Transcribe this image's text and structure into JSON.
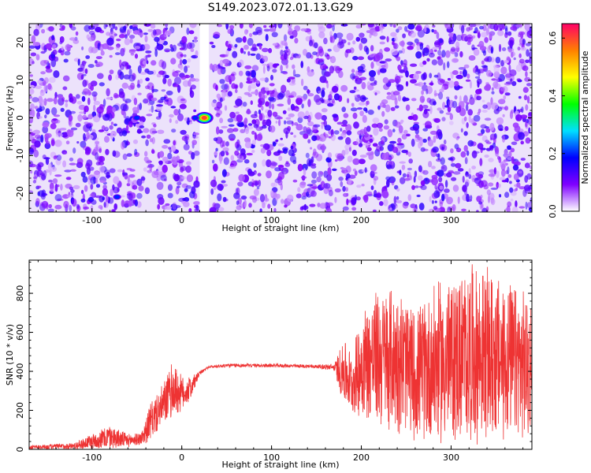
{
  "title": "S149.2023.072.01.13.G29",
  "chart_data": [
    {
      "type": "heatmap",
      "xlabel": "Height of straight line (km)",
      "ylabel": "Frequency (Hz)",
      "xlim": [
        -170,
        390
      ],
      "ylim": [
        -25,
        25
      ],
      "xticks": [
        -100,
        0,
        100,
        200,
        300
      ],
      "yticks": [
        -20,
        -10,
        0,
        10,
        20
      ],
      "colorbar": {
        "label": "Normalized spectral amplitude",
        "range": [
          0,
          0.65
        ],
        "ticks": [
          0.0,
          0.2,
          0.4,
          0.6
        ],
        "colormap": [
          "#ffffff",
          "#7f00ff",
          "#0000ff",
          "#00e0ff",
          "#00ff00",
          "#ffff00",
          "#ff8000",
          "#ff0066"
        ]
      },
      "gap_x": [
        20,
        30
      ],
      "peaks": [
        {
          "x": 25,
          "y": 0,
          "value": 0.62
        },
        {
          "x": -50,
          "y": 0,
          "value": 0.25
        },
        {
          "x": 15,
          "y": 0,
          "value": 0.22
        },
        {
          "x": -72,
          "y": -21,
          "value": 0.28
        },
        {
          "x": 255,
          "y": 0,
          "value": 0.15
        }
      ]
    },
    {
      "type": "line",
      "xlabel": "Height of straight line (km)",
      "ylabel": "SNR (10 * v/v)",
      "xlim": [
        -170,
        390
      ],
      "ylim": [
        0,
        970
      ],
      "xticks": [
        -100,
        0,
        100,
        200,
        300
      ],
      "yticks": [
        0,
        200,
        400,
        600,
        800
      ],
      "color": "#ee3333",
      "envelope": {
        "x": [
          -170,
          -120,
          -80,
          -60,
          -45,
          -35,
          -25,
          -10,
          0,
          10,
          20,
          30,
          50,
          100,
          150,
          170,
          180,
          190,
          200,
          220,
          240,
          260,
          280,
          300,
          320,
          340,
          360,
          390
        ],
        "upper": [
          20,
          35,
          130,
          80,
          90,
          240,
          300,
          460,
          380,
          380,
          400,
          430,
          440,
          440,
          435,
          440,
          580,
          500,
          730,
          840,
          860,
          720,
          860,
          890,
          970,
          940,
          880,
          800
        ],
        "lower": [
          0,
          0,
          0,
          10,
          20,
          40,
          100,
          150,
          190,
          250,
          380,
          415,
          420,
          420,
          415,
          400,
          220,
          180,
          150,
          100,
          80,
          40,
          20,
          20,
          20,
          20,
          30,
          30
        ]
      }
    }
  ]
}
